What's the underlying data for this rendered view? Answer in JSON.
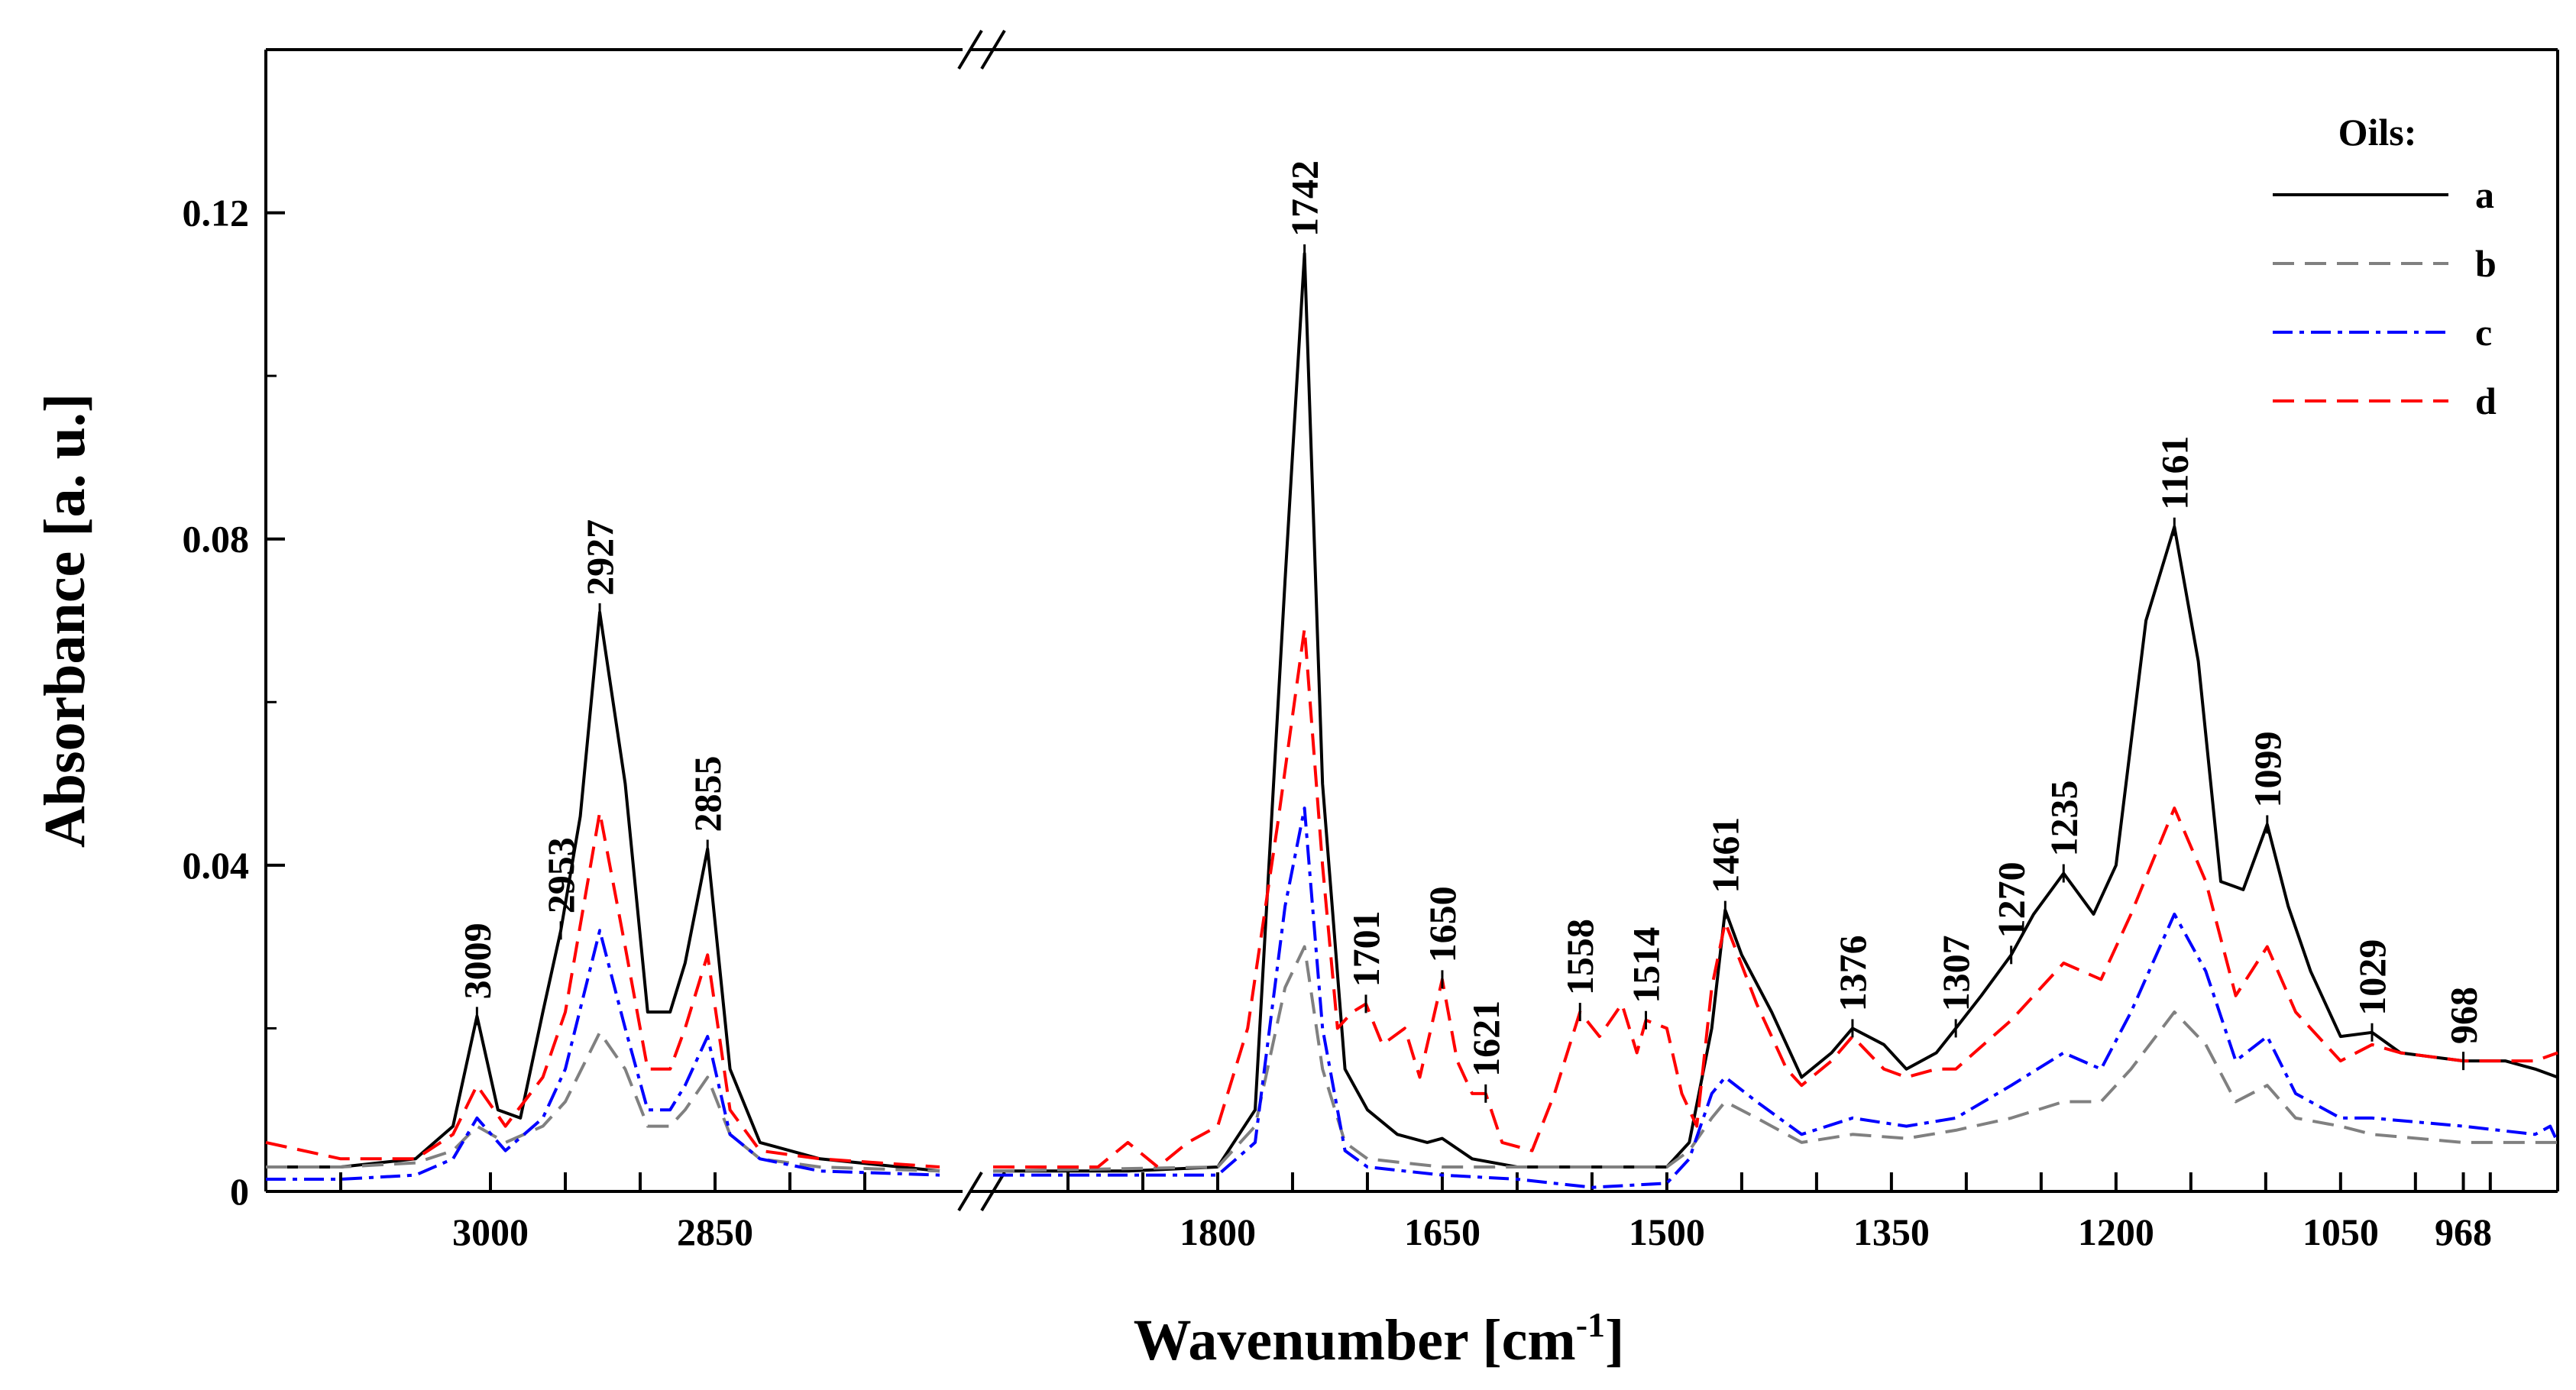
{
  "chart_data": {
    "type": "line",
    "title": "",
    "xlabel_main": "Wavenumber [cm",
    "xlabel_sup": "-1",
    "xlabel_end": "]",
    "ylabel": "Absorbance [a. u.]",
    "ylim": [
      0,
      0.14
    ],
    "y_ticks": [
      "0",
      "0.04",
      "0.08",
      "0.12"
    ],
    "x_tick_labels": [
      "3000",
      "2850",
      "1800",
      "1650",
      "1500",
      "1350",
      "1200",
      "1050",
      "968"
    ],
    "axis_break": {
      "after": 2700,
      "before": 1950
    },
    "legend": {
      "title": "Oils:",
      "position": "top-right",
      "entries": [
        "a",
        "b",
        "c",
        "d"
      ]
    },
    "series": [
      {
        "name": "a",
        "color": "#000000",
        "dash": "solid",
        "points": [
          [
            3150,
            0.003
          ],
          [
            3100,
            0.003
          ],
          [
            3050,
            0.004
          ],
          [
            3025,
            0.008
          ],
          [
            3009,
            0.0215
          ],
          [
            2995,
            0.01
          ],
          [
            2980,
            0.009
          ],
          [
            2965,
            0.022
          ],
          [
            2953,
            0.032
          ],
          [
            2940,
            0.046
          ],
          [
            2927,
            0.071
          ],
          [
            2910,
            0.05
          ],
          [
            2895,
            0.022
          ],
          [
            2880,
            0.022
          ],
          [
            2870,
            0.028
          ],
          [
            2855,
            0.042
          ],
          [
            2840,
            0.015
          ],
          [
            2820,
            0.006
          ],
          [
            2780,
            0.004
          ],
          [
            2700,
            0.0025
          ],
          [
            1950,
            0.0025
          ],
          [
            1860,
            0.0025
          ],
          [
            1800,
            0.003
          ],
          [
            1775,
            0.01
          ],
          [
            1755,
            0.075
          ],
          [
            1742,
            0.115
          ],
          [
            1730,
            0.05
          ],
          [
            1715,
            0.015
          ],
          [
            1700,
            0.01
          ],
          [
            1680,
            0.007
          ],
          [
            1660,
            0.006
          ],
          [
            1650,
            0.0065
          ],
          [
            1630,
            0.004
          ],
          [
            1600,
            0.003
          ],
          [
            1500,
            0.003
          ],
          [
            1485,
            0.006
          ],
          [
            1470,
            0.02
          ],
          [
            1461,
            0.0345
          ],
          [
            1450,
            0.029
          ],
          [
            1430,
            0.022
          ],
          [
            1410,
            0.014
          ],
          [
            1390,
            0.017
          ],
          [
            1376,
            0.02
          ],
          [
            1355,
            0.018
          ],
          [
            1340,
            0.015
          ],
          [
            1320,
            0.017
          ],
          [
            1307,
            0.02
          ],
          [
            1290,
            0.024
          ],
          [
            1270,
            0.029
          ],
          [
            1255,
            0.034
          ],
          [
            1235,
            0.039
          ],
          [
            1215,
            0.034
          ],
          [
            1200,
            0.04
          ],
          [
            1180,
            0.07
          ],
          [
            1161,
            0.0815
          ],
          [
            1145,
            0.065
          ],
          [
            1130,
            0.038
          ],
          [
            1115,
            0.037
          ],
          [
            1099,
            0.045
          ],
          [
            1085,
            0.035
          ],
          [
            1070,
            0.027
          ],
          [
            1050,
            0.019
          ],
          [
            1029,
            0.0195
          ],
          [
            1010,
            0.017
          ],
          [
            968,
            0.016
          ],
          [
            940,
            0.016
          ],
          [
            920,
            0.015
          ],
          [
            905,
            0.014
          ]
        ]
      },
      {
        "name": "b",
        "color": "#808080",
        "dash": "28,14",
        "points": [
          [
            3150,
            0.003
          ],
          [
            3100,
            0.003
          ],
          [
            3050,
            0.0035
          ],
          [
            3025,
            0.005
          ],
          [
            3009,
            0.008
          ],
          [
            2990,
            0.006
          ],
          [
            2965,
            0.008
          ],
          [
            2950,
            0.011
          ],
          [
            2927,
            0.0195
          ],
          [
            2910,
            0.015
          ],
          [
            2895,
            0.008
          ],
          [
            2880,
            0.008
          ],
          [
            2870,
            0.01
          ],
          [
            2855,
            0.014
          ],
          [
            2840,
            0.007
          ],
          [
            2820,
            0.004
          ],
          [
            2780,
            0.003
          ],
          [
            2700,
            0.0025
          ],
          [
            1950,
            0.0025
          ],
          [
            1800,
            0.003
          ],
          [
            1775,
            0.008
          ],
          [
            1755,
            0.025
          ],
          [
            1742,
            0.03
          ],
          [
            1730,
            0.015
          ],
          [
            1715,
            0.006
          ],
          [
            1700,
            0.004
          ],
          [
            1650,
            0.003
          ],
          [
            1600,
            0.003
          ],
          [
            1500,
            0.003
          ],
          [
            1485,
            0.005
          ],
          [
            1470,
            0.009
          ],
          [
            1461,
            0.011
          ],
          [
            1440,
            0.009
          ],
          [
            1410,
            0.006
          ],
          [
            1376,
            0.007
          ],
          [
            1340,
            0.0065
          ],
          [
            1307,
            0.0075
          ],
          [
            1270,
            0.009
          ],
          [
            1235,
            0.011
          ],
          [
            1210,
            0.011
          ],
          [
            1190,
            0.015
          ],
          [
            1161,
            0.022
          ],
          [
            1140,
            0.018
          ],
          [
            1120,
            0.011
          ],
          [
            1099,
            0.013
          ],
          [
            1080,
            0.009
          ],
          [
            1050,
            0.008
          ],
          [
            1029,
            0.007
          ],
          [
            968,
            0.006
          ],
          [
            905,
            0.006
          ]
        ]
      },
      {
        "name": "c",
        "color": "#0000ff",
        "dash": "26,9,6,9",
        "points": [
          [
            3150,
            0.0015
          ],
          [
            3100,
            0.0015
          ],
          [
            3050,
            0.002
          ],
          [
            3025,
            0.004
          ],
          [
            3009,
            0.009
          ],
          [
            2990,
            0.005
          ],
          [
            2965,
            0.009
          ],
          [
            2950,
            0.015
          ],
          [
            2927,
            0.032
          ],
          [
            2910,
            0.02
          ],
          [
            2895,
            0.01
          ],
          [
            2880,
            0.01
          ],
          [
            2870,
            0.013
          ],
          [
            2855,
            0.019
          ],
          [
            2840,
            0.007
          ],
          [
            2820,
            0.004
          ],
          [
            2780,
            0.0025
          ],
          [
            2700,
            0.002
          ],
          [
            1950,
            0.002
          ],
          [
            1800,
            0.002
          ],
          [
            1775,
            0.006
          ],
          [
            1755,
            0.035
          ],
          [
            1742,
            0.047
          ],
          [
            1730,
            0.02
          ],
          [
            1715,
            0.005
          ],
          [
            1700,
            0.003
          ],
          [
            1650,
            0.002
          ],
          [
            1600,
            0.0015
          ],
          [
            1550,
            0.0005
          ],
          [
            1500,
            0.001
          ],
          [
            1485,
            0.004
          ],
          [
            1470,
            0.012
          ],
          [
            1461,
            0.014
          ],
          [
            1440,
            0.011
          ],
          [
            1410,
            0.007
          ],
          [
            1376,
            0.009
          ],
          [
            1340,
            0.008
          ],
          [
            1307,
            0.009
          ],
          [
            1270,
            0.013
          ],
          [
            1235,
            0.017
          ],
          [
            1210,
            0.015
          ],
          [
            1190,
            0.022
          ],
          [
            1161,
            0.034
          ],
          [
            1140,
            0.027
          ],
          [
            1120,
            0.016
          ],
          [
            1099,
            0.019
          ],
          [
            1080,
            0.012
          ],
          [
            1050,
            0.009
          ],
          [
            1029,
            0.009
          ],
          [
            968,
            0.008
          ],
          [
            920,
            0.007
          ],
          [
            910,
            0.008
          ],
          [
            905,
            0.006
          ]
        ]
      },
      {
        "name": "d",
        "color": "#ff0000",
        "dash": "28,14",
        "points": [
          [
            3150,
            0.006
          ],
          [
            3100,
            0.004
          ],
          [
            3050,
            0.004
          ],
          [
            3025,
            0.007
          ],
          [
            3009,
            0.013
          ],
          [
            2990,
            0.008
          ],
          [
            2965,
            0.014
          ],
          [
            2950,
            0.022
          ],
          [
            2927,
            0.0465
          ],
          [
            2910,
            0.03
          ],
          [
            2895,
            0.015
          ],
          [
            2880,
            0.015
          ],
          [
            2870,
            0.02
          ],
          [
            2855,
            0.029
          ],
          [
            2840,
            0.01
          ],
          [
            2820,
            0.005
          ],
          [
            2780,
            0.004
          ],
          [
            2700,
            0.003
          ],
          [
            1950,
            0.003
          ],
          [
            1880,
            0.003
          ],
          [
            1860,
            0.006
          ],
          [
            1840,
            0.003
          ],
          [
            1820,
            0.006
          ],
          [
            1800,
            0.008
          ],
          [
            1780,
            0.02
          ],
          [
            1760,
            0.045
          ],
          [
            1742,
            0.069
          ],
          [
            1730,
            0.04
          ],
          [
            1720,
            0.02
          ],
          [
            1710,
            0.022
          ],
          [
            1701,
            0.023
          ],
          [
            1690,
            0.018
          ],
          [
            1675,
            0.02
          ],
          [
            1665,
            0.014
          ],
          [
            1650,
            0.026
          ],
          [
            1640,
            0.016
          ],
          [
            1630,
            0.012
          ],
          [
            1621,
            0.012
          ],
          [
            1610,
            0.006
          ],
          [
            1590,
            0.005
          ],
          [
            1575,
            0.012
          ],
          [
            1558,
            0.022
          ],
          [
            1545,
            0.019
          ],
          [
            1530,
            0.023
          ],
          [
            1520,
            0.017
          ],
          [
            1514,
            0.021
          ],
          [
            1500,
            0.02
          ],
          [
            1490,
            0.012
          ],
          [
            1480,
            0.008
          ],
          [
            1470,
            0.025
          ],
          [
            1461,
            0.033
          ],
          [
            1440,
            0.023
          ],
          [
            1420,
            0.015
          ],
          [
            1410,
            0.013
          ],
          [
            1390,
            0.016
          ],
          [
            1376,
            0.019
          ],
          [
            1355,
            0.015
          ],
          [
            1340,
            0.014
          ],
          [
            1320,
            0.015
          ],
          [
            1307,
            0.015
          ],
          [
            1270,
            0.021
          ],
          [
            1235,
            0.028
          ],
          [
            1210,
            0.026
          ],
          [
            1190,
            0.034
          ],
          [
            1161,
            0.047
          ],
          [
            1140,
            0.038
          ],
          [
            1120,
            0.024
          ],
          [
            1099,
            0.03
          ],
          [
            1080,
            0.022
          ],
          [
            1050,
            0.016
          ],
          [
            1029,
            0.018
          ],
          [
            1010,
            0.017
          ],
          [
            968,
            0.016
          ],
          [
            920,
            0.016
          ],
          [
            905,
            0.017
          ]
        ]
      }
    ],
    "peak_labels": [
      {
        "label": "3009",
        "x": 3009,
        "y": 0.0215
      },
      {
        "label": "2953",
        "x": 2953,
        "y": 0.032
      },
      {
        "label": "2927",
        "x": 2927,
        "y": 0.071
      },
      {
        "label": "2855",
        "x": 2855,
        "y": 0.042
      },
      {
        "label": "1742",
        "x": 1742,
        "y": 0.115
      },
      {
        "label": "1701",
        "x": 1701,
        "y": 0.023
      },
      {
        "label": "1650",
        "x": 1650,
        "y": 0.026
      },
      {
        "label": "1621",
        "x": 1621,
        "y": 0.012
      },
      {
        "label": "1558",
        "x": 1558,
        "y": 0.022
      },
      {
        "label": "1514",
        "x": 1514,
        "y": 0.021
      },
      {
        "label": "1461",
        "x": 1461,
        "y": 0.0345
      },
      {
        "label": "1376",
        "x": 1376,
        "y": 0.02
      },
      {
        "label": "1307",
        "x": 1307,
        "y": 0.02
      },
      {
        "label": "1270",
        "x": 1270,
        "y": 0.029
      },
      {
        "label": "1235",
        "x": 1235,
        "y": 0.039
      },
      {
        "label": "1161",
        "x": 1161,
        "y": 0.0815
      },
      {
        "label": "1099",
        "x": 1099,
        "y": 0.045
      },
      {
        "label": "1029",
        "x": 1029,
        "y": 0.0195
      },
      {
        "label": "968",
        "x": 968,
        "y": 0.016
      }
    ]
  }
}
